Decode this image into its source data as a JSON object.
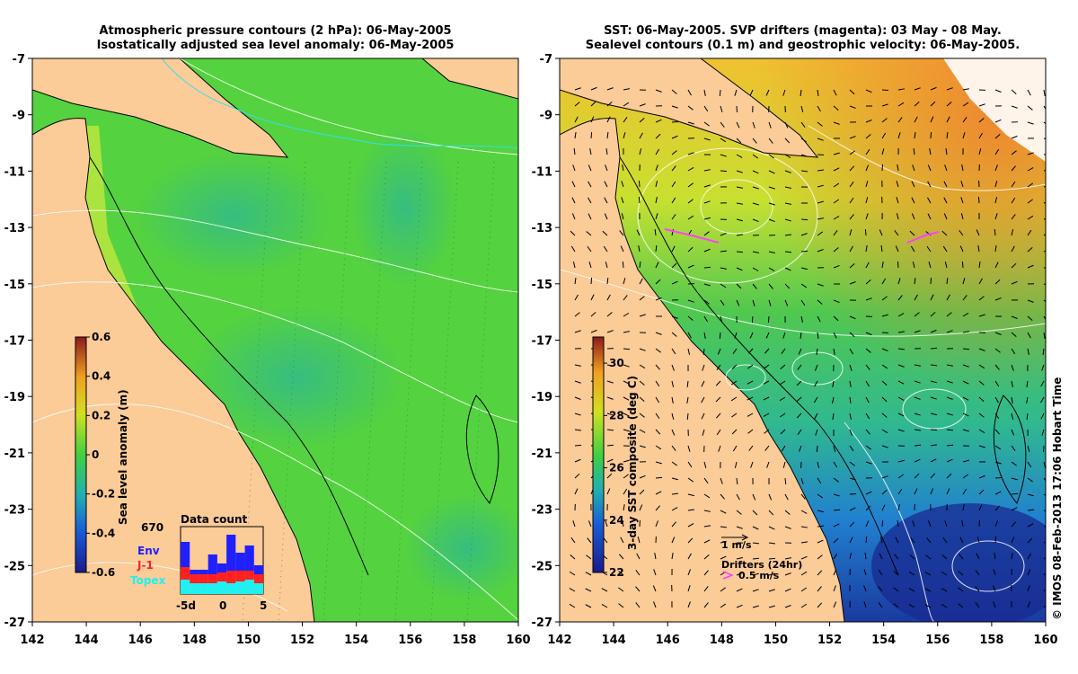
{
  "left_panel": {
    "title_line1": "Atmospheric pressure contours (2 hPa): 06-May-2005",
    "title_line2": "Isostatically adjusted sea level anomaly: 06-May-2005",
    "y_ticks": [
      "-7",
      "-9",
      "-11",
      "-13",
      "-15",
      "-17",
      "-19",
      "-21",
      "-23",
      "-25",
      "-27"
    ],
    "x_ticks": [
      "142",
      "144",
      "146",
      "148",
      "150",
      "152",
      "154",
      "156",
      "158",
      "160"
    ],
    "colorbar": {
      "label": "Sea level anomaly (m)",
      "ticks": [
        "0.6",
        "0.4",
        "0.2",
        "0",
        "-0.2",
        "-0.4",
        "-0.6"
      ],
      "range": [
        -0.6,
        0.6
      ]
    },
    "data_count": {
      "title": "Data count",
      "max_label": "670",
      "legend": [
        "Env",
        "J-1",
        "Topex"
      ],
      "legend_colors": [
        "#2020ff",
        "#ff2020",
        "#20f0f0"
      ],
      "x_ticks": [
        "-5d",
        "0",
        "5"
      ]
    }
  },
  "right_panel": {
    "title_line1": "SST: 06-May-2005. SVP drifters (magenta): 03 May - 08 May.",
    "title_line2": "Sealevel contours (0.1 m) and geostrophic velocity: 06-May-2005.",
    "y_ticks": [
      "-7",
      "-9",
      "-11",
      "-13",
      "-15",
      "-17",
      "-19",
      "-21",
      "-23",
      "-25",
      "-27"
    ],
    "x_ticks": [
      "142",
      "144",
      "146",
      "148",
      "150",
      "152",
      "154",
      "156",
      "158",
      "160"
    ],
    "colorbar": {
      "label": "3-day SST composite (deg C)",
      "ticks": [
        "30",
        "28",
        "26",
        "24",
        "22"
      ],
      "range": [
        22,
        31
      ]
    },
    "velocity_scale_label": "1 m/s",
    "drifters_label": "Drifters (24hr)",
    "drifter_speed_label": "0.5 m/s",
    "drifter_color": "#ff40ff"
  },
  "copyright": "© IMOS 08-Feb-2013 17:06 Hobart Time",
  "colors": {
    "land": "#fbcb98",
    "sea_green": "#55d23f",
    "sea_teal": "#3ec08a",
    "sst_blue": "#1a5ad6",
    "sst_orange": "#f2a030"
  }
}
